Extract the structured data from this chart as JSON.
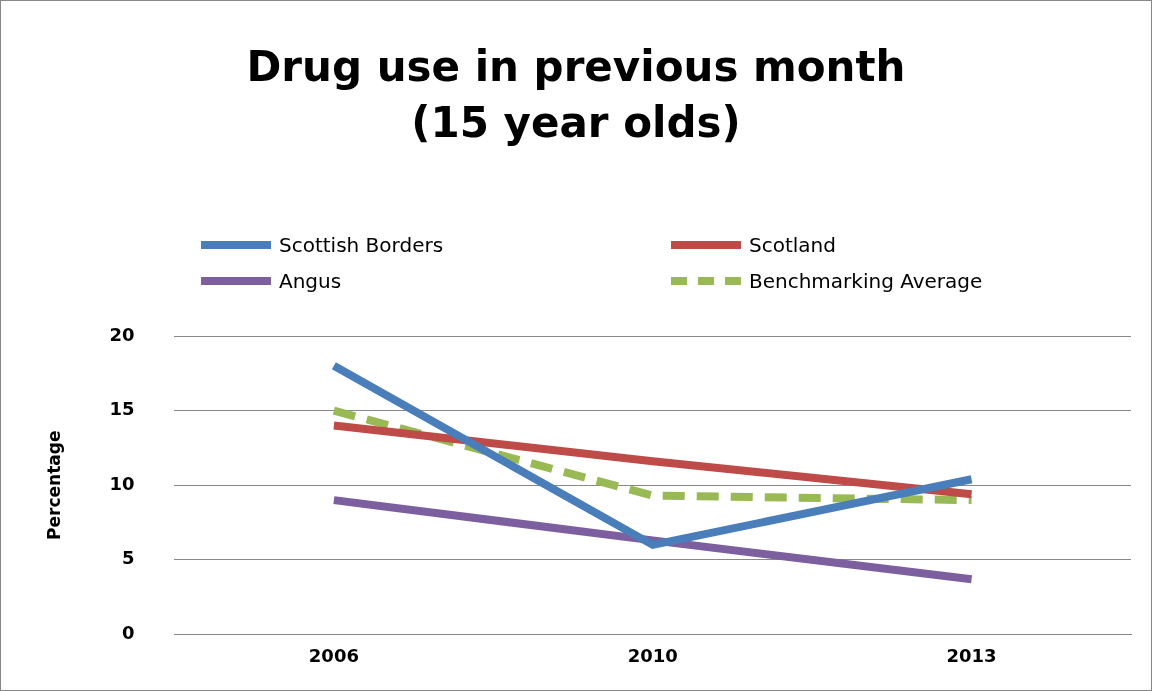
{
  "chart_data": {
    "type": "line",
    "title": "Drug use in previous month\n(15 year olds)",
    "ylabel": "Percentage",
    "categories": [
      "2006",
      "2010",
      "2013"
    ],
    "series": [
      {
        "name": "Scottish Borders",
        "color": "#4a7ebb",
        "values": [
          18,
          6,
          10.4
        ]
      },
      {
        "name": "Scotland",
        "color": "#be4b48",
        "values": [
          14,
          11.6,
          9.4
        ]
      },
      {
        "name": "Angus",
        "color": "#7d5fa0",
        "values": [
          9,
          6.3,
          3.7
        ]
      },
      {
        "name": "Benchmarking Average",
        "color": "#98b954",
        "values": [
          15,
          9.3,
          9
        ],
        "line_style": "dashed"
      }
    ],
    "ylim": [
      0,
      20
    ],
    "yticks": [
      0,
      5,
      10,
      15,
      20
    ],
    "grid": "y",
    "legend": "top",
    "marker": "none",
    "line_style": "solid"
  }
}
